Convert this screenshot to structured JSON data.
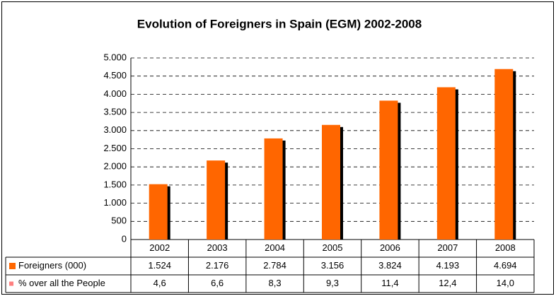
{
  "chart_data": {
    "type": "bar",
    "title": "Evolution of Foreigners in Spain (EGM) 2002-2008",
    "categories": [
      "2002",
      "2003",
      "2004",
      "2005",
      "2006",
      "2007",
      "2008"
    ],
    "series": [
      {
        "name": "Foreigners (000)",
        "color": "#ff6600",
        "values": [
          1524,
          2176,
          2784,
          3156,
          3824,
          4193,
          4694
        ],
        "value_labels": [
          "1.524",
          "2.176",
          "2.784",
          "3.156",
          "3.824",
          "4.193",
          "4.694"
        ]
      },
      {
        "name": "% over all the People",
        "color": "#ff8080",
        "values": [
          4.6,
          6.6,
          8.3,
          9.3,
          11.4,
          12.4,
          14.0
        ],
        "value_labels": [
          "4,6",
          "6,6",
          "8,3",
          "9,3",
          "11,4",
          "12,4",
          "14,0"
        ]
      }
    ],
    "ylim": [
      0,
      5000
    ],
    "yticks": [
      0,
      500,
      {
        "value": 1000,
        "label": "1.000"
      },
      {
        "value": 1500,
        "label": "1.500"
      },
      {
        "value": 2000,
        "label": "2.000"
      },
      {
        "value": 2500,
        "label": "2.500"
      },
      {
        "value": 3000,
        "label": "3.000"
      },
      {
        "value": 3500,
        "label": "3.500"
      },
      {
        "value": 4000,
        "label": "4.000"
      },
      {
        "value": 4500,
        "label": "4.500"
      },
      {
        "value": 5000,
        "label": "5.000"
      }
    ],
    "grid": true
  }
}
